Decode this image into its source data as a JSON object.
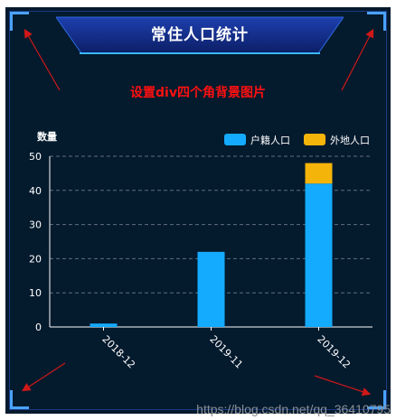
{
  "title": "常住人口统计",
  "annotation": "设置div四个角背景图片",
  "watermark": "https://blog.csdn.net/qq_36410795",
  "colors": {
    "background": "#041a2d",
    "frame": "#1b3b86",
    "corner": "#4aa3ff",
    "annotation": "#ff1010",
    "series_primary": "#14abfe",
    "series_secondary": "#f5b40a"
  },
  "chart_data": {
    "type": "bar",
    "stacked": true,
    "ylabel": "数量",
    "ylim": [
      0,
      50
    ],
    "yticks": [
      0,
      10,
      20,
      30,
      40,
      50
    ],
    "grid": true,
    "legend_position": "top-right",
    "categories": [
      "2018-12",
      "2019-11",
      "2019-12"
    ],
    "series": [
      {
        "name": "户籍人口",
        "values": [
          1,
          22,
          42
        ],
        "color": "#14abfe"
      },
      {
        "name": "外地人口",
        "values": [
          0,
          0,
          6
        ],
        "color": "#f5b40a"
      }
    ]
  }
}
